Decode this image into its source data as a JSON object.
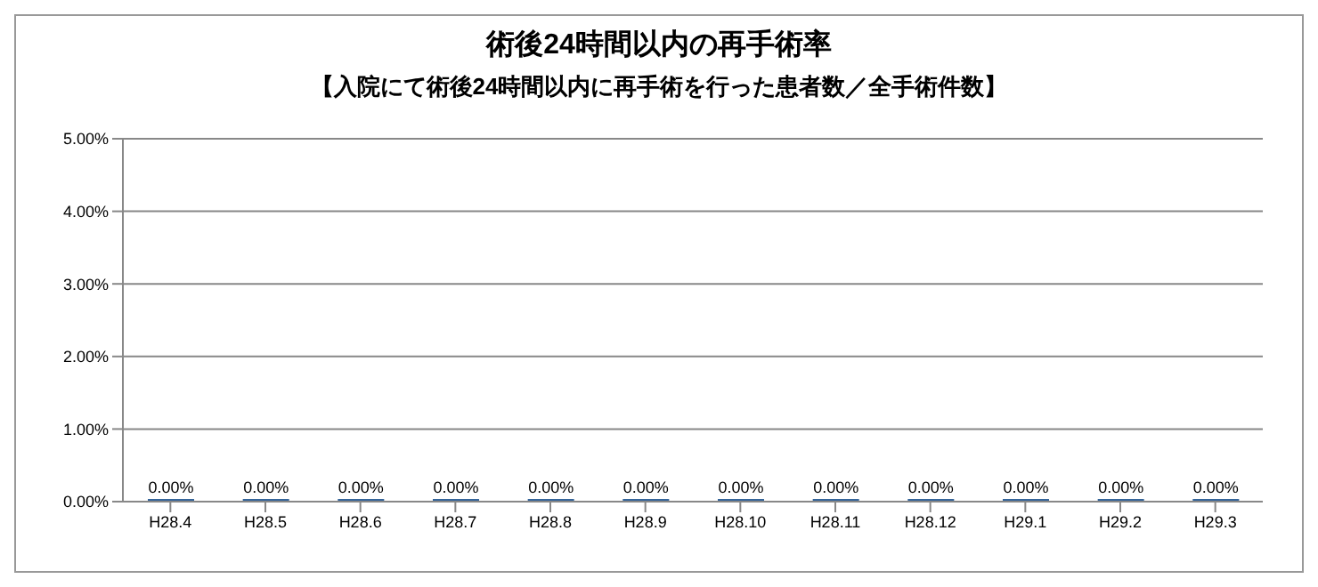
{
  "chart_data": {
    "type": "bar",
    "title": "術後24時間以内の再手術率",
    "subtitle": "【入院にて術後24時間以内に再手術を行った患者数／全手術件数】",
    "categories": [
      "H28.4",
      "H28.5",
      "H28.6",
      "H28.7",
      "H28.8",
      "H28.9",
      "H28.10",
      "H28.11",
      "H28.12",
      "H29.1",
      "H29.2",
      "H29.3"
    ],
    "values": [
      0,
      0,
      0,
      0,
      0,
      0,
      0,
      0,
      0,
      0,
      0,
      0
    ],
    "value_labels": [
      "0.00%",
      "0.00%",
      "0.00%",
      "0.00%",
      "0.00%",
      "0.00%",
      "0.00%",
      "0.00%",
      "0.00%",
      "0.00%",
      "0.00%",
      "0.00%"
    ],
    "color": "#35659a",
    "ylim": [
      0,
      5
    ],
    "yticks": [
      {
        "value": 0,
        "label": "0.00%"
      },
      {
        "value": 1,
        "label": "1.00%"
      },
      {
        "value": 2,
        "label": "2.00%"
      },
      {
        "value": 3,
        "label": "3.00%"
      },
      {
        "value": 4,
        "label": "4.00%"
      },
      {
        "value": 5,
        "label": "5.00%"
      }
    ],
    "grid": "y",
    "legend": false
  }
}
